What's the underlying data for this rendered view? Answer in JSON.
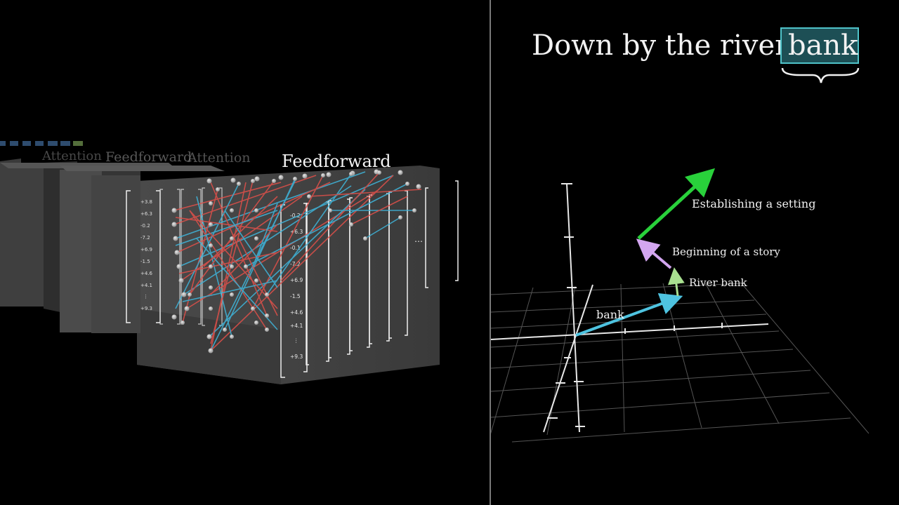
{
  "left": {
    "stack_labels": {
      "feedforward_main": "Feedforward",
      "feedforward_back": "Feedforward",
      "attention_back": "Attention",
      "attention_far": "Attention"
    },
    "vector_values": [
      "+3.8",
      "+6.3",
      "-0.2",
      "-7.2",
      "+6.9",
      "-1.5",
      "+4.6",
      "+4.1",
      "⋮",
      "+9.3"
    ],
    "vector_values_front": [
      "-0.2",
      "+6.3",
      "-0.1",
      "-7.2",
      "+6.9",
      "-1.5",
      "+4.6",
      "+4.1",
      "⋮",
      "+9.3"
    ],
    "ellipsis": "…"
  },
  "right": {
    "title_prefix": "Down by the river",
    "title_highlight": "bank",
    "colors": {
      "highlight_box": "#4fc3c9",
      "highlight_fill": "#1d4f55",
      "vec_bank": "#4ec3e0",
      "vec_river_bank": "#a8e090",
      "vec_story": "#d3a6f0",
      "vec_setting": "#29d13b"
    },
    "vector_labels": {
      "bank": "bank",
      "river_bank": "River bank",
      "story": "Beginning of a story",
      "setting": "Establishing a setting"
    }
  }
}
